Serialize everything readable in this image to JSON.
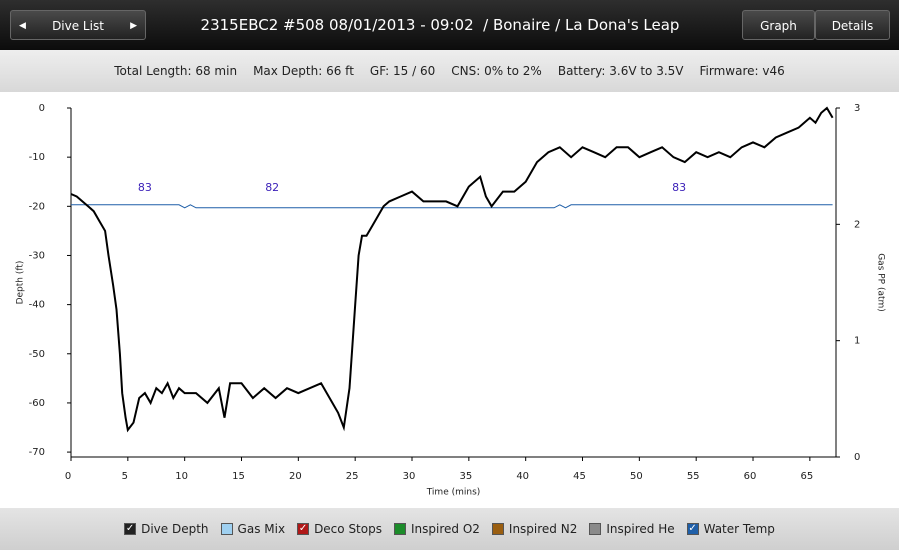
{
  "header": {
    "back_button": "Dive List",
    "title": "2315EBC2 #508 08/01/2013 - 09:02  / Bonaire / La Dona's Leap",
    "tabs": [
      "Graph",
      "Details"
    ]
  },
  "info": [
    "Total Length: 68 min",
    "Max Depth: 66 ft",
    "GF: 15 / 60",
    "CNS: 0% to 2%",
    "Battery: 3.6V to 3.5V",
    "Firmware: v46"
  ],
  "chart_data": {
    "type": "line",
    "x_label": "Time (mins)",
    "y_label": "Depth (ft)",
    "y2_label": "Gas PP (atm)",
    "xlim": [
      0,
      67.3
    ],
    "xticks": [
      0,
      5,
      10,
      15,
      20,
      25,
      30,
      35,
      40,
      45,
      50,
      55,
      60,
      65
    ],
    "ylim": [
      -71,
      0
    ],
    "yticks": [
      0,
      -10,
      -20,
      -30,
      -40,
      -50,
      -60,
      -70
    ],
    "y2lim": [
      0,
      3
    ],
    "y2ticks": [
      0,
      1,
      2,
      3
    ],
    "series": [
      {
        "name": "Dive Depth",
        "color": "#000000",
        "x": [
          0,
          0.5,
          1,
          1.5,
          2,
          2.5,
          3,
          3.3,
          3.7,
          4,
          4.3,
          4.5,
          4.8,
          5,
          5.5,
          6,
          6.5,
          7,
          7.5,
          8,
          8.5,
          9,
          9.5,
          10,
          11,
          12,
          13,
          13.5,
          14,
          15,
          16,
          17,
          18,
          19,
          20,
          21,
          22,
          23,
          23.5,
          24,
          24.5,
          25,
          25.3,
          25.6,
          26,
          26.5,
          27,
          27.5,
          28,
          29,
          30,
          31,
          32,
          33,
          34,
          35,
          36,
          36.5,
          37,
          38,
          39,
          40,
          41,
          42,
          43,
          44,
          45,
          46,
          47,
          48,
          49,
          50,
          51,
          52,
          53,
          54,
          55,
          56,
          57,
          58,
          59,
          60,
          61,
          62,
          63,
          64,
          64.5,
          65,
          65.5,
          66,
          66.5,
          67
        ],
        "values": [
          -17.5,
          -18,
          -19,
          -20,
          -21,
          -23,
          -25,
          -30,
          -36,
          -41,
          -50,
          -58,
          -63,
          -65.5,
          -64,
          -59,
          -58,
          -60,
          -57,
          -58,
          -56,
          -59,
          -57,
          -58,
          -58,
          -60,
          -57,
          -63,
          -56,
          -56,
          -59,
          -57,
          -59,
          -57,
          -58,
          -57,
          -56,
          -60,
          -62,
          -65,
          -57,
          -40,
          -30,
          -26,
          -26,
          -24,
          -22,
          -20,
          -19,
          -18,
          -17,
          -19,
          -19,
          -19,
          -20,
          -16,
          -14,
          -18,
          -20,
          -17,
          -17,
          -15,
          -11,
          -9,
          -8,
          -10,
          -8,
          -9,
          -10,
          -8,
          -8,
          -10,
          -9,
          -8,
          -10,
          -11,
          -9,
          -10,
          -9,
          -10,
          -8,
          -7,
          -8,
          -6,
          -5,
          -4,
          -3,
          -2,
          -3,
          -1,
          0,
          -2
        ]
      },
      {
        "name": "Water Temp",
        "color": "#1f5fa8",
        "x": [
          0,
          1.5,
          9.5,
          10,
          10.5,
          11,
          42.5,
          43,
          43.5,
          44,
          67
        ],
        "values": [
          -19.7,
          -19.7,
          -19.7,
          -20.3,
          -19.7,
          -20.3,
          -20.3,
          -19.7,
          -20.3,
          -19.7,
          -19.7
        ]
      }
    ],
    "annotations": [
      {
        "x": 6.5,
        "text": "83"
      },
      {
        "x": 17.7,
        "text": "82"
      },
      {
        "x": 53.5,
        "text": "83"
      }
    ],
    "legend": [
      {
        "name": "Dive Depth",
        "color": "#222222",
        "checked": true
      },
      {
        "name": "Gas Mix",
        "color": "#9fd0f0",
        "checked": false
      },
      {
        "name": "Deco Stops",
        "color": "#b01818",
        "checked": true
      },
      {
        "name": "Inspired O2",
        "color": "#1c8c2a",
        "checked": false
      },
      {
        "name": "Inspired N2",
        "color": "#9a5e10",
        "checked": false
      },
      {
        "name": "Inspired He",
        "color": "#8a8a8a",
        "checked": false
      },
      {
        "name": "Water Temp",
        "color": "#1f5fa8",
        "checked": true
      }
    ]
  }
}
